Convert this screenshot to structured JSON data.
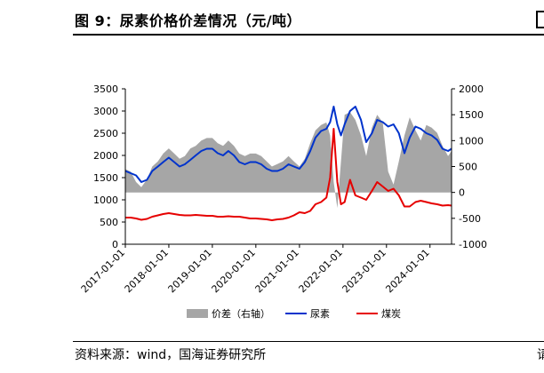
{
  "header": {
    "title": "图 9：尿素价格价差情况（元/吨）"
  },
  "footer": {
    "source": "资料来源：wind，国海证券研究所",
    "cut_char": "请"
  },
  "chart_data": {
    "type": "line",
    "title": "",
    "x_axis": {
      "type": "date",
      "ticks": [
        "2017-01-01",
        "2018-01-01",
        "2019-01-01",
        "2020-01-01",
        "2021-01-01",
        "2022-01-01",
        "2023-01-01",
        "2024-01-01"
      ],
      "range": [
        "2017-01-01",
        "2024-06-30"
      ]
    },
    "y_left": {
      "range": [
        0,
        3500
      ],
      "ticks": [
        0,
        500,
        1000,
        1500,
        2000,
        2500,
        3000,
        3500
      ]
    },
    "y_right": {
      "range": [
        -1000,
        2000
      ],
      "ticks": [
        -1000,
        -500,
        0,
        500,
        1000,
        1500,
        2000
      ]
    },
    "legend": {
      "position": "bottom"
    },
    "series": [
      {
        "name": "价差（右轴）",
        "type": "area",
        "axis": "right",
        "color": "#a6a6a6",
        "points": [
          [
            "2017-01-01",
            450
          ],
          [
            "2017-02-15",
            400
          ],
          [
            "2017-04-01",
            200
          ],
          [
            "2017-05-15",
            100
          ],
          [
            "2017-07-01",
            250
          ],
          [
            "2017-08-15",
            500
          ],
          [
            "2017-10-01",
            600
          ],
          [
            "2017-11-15",
            750
          ],
          [
            "2018-01-01",
            850
          ],
          [
            "2018-02-15",
            750
          ],
          [
            "2018-04-01",
            650
          ],
          [
            "2018-05-15",
            700
          ],
          [
            "2018-07-01",
            850
          ],
          [
            "2018-08-15",
            900
          ],
          [
            "2018-10-01",
            1000
          ],
          [
            "2018-11-15",
            1050
          ],
          [
            "2019-01-01",
            1050
          ],
          [
            "2019-02-15",
            950
          ],
          [
            "2019-04-01",
            900
          ],
          [
            "2019-05-15",
            1000
          ],
          [
            "2019-07-01",
            900
          ],
          [
            "2019-08-15",
            750
          ],
          [
            "2019-10-01",
            700
          ],
          [
            "2019-11-15",
            750
          ],
          [
            "2020-01-01",
            750
          ],
          [
            "2020-02-15",
            700
          ],
          [
            "2020-04-01",
            600
          ],
          [
            "2020-05-15",
            500
          ],
          [
            "2020-07-01",
            550
          ],
          [
            "2020-08-15",
            600
          ],
          [
            "2020-10-01",
            700
          ],
          [
            "2020-11-15",
            600
          ],
          [
            "2021-01-01",
            500
          ],
          [
            "2021-02-15",
            650
          ],
          [
            "2021-04-01",
            950
          ],
          [
            "2021-05-15",
            1200
          ],
          [
            "2021-07-01",
            1300
          ],
          [
            "2021-08-15",
            1350
          ],
          [
            "2021-09-15",
            1100
          ],
          [
            "2021-10-15",
            200
          ],
          [
            "2021-11-15",
            -300
          ],
          [
            "2021-12-15",
            600
          ],
          [
            "2022-01-15",
            1500
          ],
          [
            "2022-03-01",
            1550
          ],
          [
            "2022-04-15",
            1400
          ],
          [
            "2022-06-01",
            1100
          ],
          [
            "2022-07-15",
            700
          ],
          [
            "2022-09-01",
            1250
          ],
          [
            "2022-10-15",
            1500
          ],
          [
            "2022-12-01",
            1350
          ],
          [
            "2023-01-15",
            400
          ],
          [
            "2023-03-01",
            150
          ],
          [
            "2023-04-15",
            600
          ],
          [
            "2023-06-01",
            1100
          ],
          [
            "2023-07-15",
            1450
          ],
          [
            "2023-09-01",
            1200
          ],
          [
            "2023-10-15",
            1000
          ],
          [
            "2023-12-01",
            1300
          ],
          [
            "2024-01-15",
            1250
          ],
          [
            "2024-03-01",
            1150
          ],
          [
            "2024-04-15",
            900
          ],
          [
            "2024-06-01",
            700
          ],
          [
            "2024-06-30",
            800
          ]
        ]
      },
      {
        "name": "尿素",
        "type": "line",
        "axis": "left",
        "color": "#0033cc",
        "points": [
          [
            "2017-01-01",
            1650
          ],
          [
            "2017-02-15",
            1600
          ],
          [
            "2017-04-01",
            1550
          ],
          [
            "2017-05-15",
            1400
          ],
          [
            "2017-07-01",
            1450
          ],
          [
            "2017-08-15",
            1650
          ],
          [
            "2017-10-01",
            1750
          ],
          [
            "2017-11-15",
            1850
          ],
          [
            "2018-01-01",
            1950
          ],
          [
            "2018-02-15",
            1850
          ],
          [
            "2018-04-01",
            1750
          ],
          [
            "2018-05-15",
            1800
          ],
          [
            "2018-07-01",
            1900
          ],
          [
            "2018-08-15",
            2000
          ],
          [
            "2018-10-01",
            2100
          ],
          [
            "2018-11-15",
            2150
          ],
          [
            "2019-01-01",
            2150
          ],
          [
            "2019-02-15",
            2050
          ],
          [
            "2019-04-01",
            2000
          ],
          [
            "2019-05-15",
            2100
          ],
          [
            "2019-07-01",
            2000
          ],
          [
            "2019-08-15",
            1850
          ],
          [
            "2019-10-01",
            1800
          ],
          [
            "2019-11-15",
            1850
          ],
          [
            "2020-01-01",
            1850
          ],
          [
            "2020-02-15",
            1800
          ],
          [
            "2020-04-01",
            1700
          ],
          [
            "2020-05-15",
            1650
          ],
          [
            "2020-07-01",
            1650
          ],
          [
            "2020-08-15",
            1700
          ],
          [
            "2020-10-01",
            1800
          ],
          [
            "2020-11-15",
            1750
          ],
          [
            "2021-01-01",
            1700
          ],
          [
            "2021-02-15",
            1850
          ],
          [
            "2021-04-01",
            2100
          ],
          [
            "2021-05-15",
            2400
          ],
          [
            "2021-07-01",
            2550
          ],
          [
            "2021-08-15",
            2600
          ],
          [
            "2021-09-15",
            2750
          ],
          [
            "2021-10-15",
            3100
          ],
          [
            "2021-11-15",
            2700
          ],
          [
            "2021-12-15",
            2450
          ],
          [
            "2022-01-15",
            2700
          ],
          [
            "2022-03-01",
            3000
          ],
          [
            "2022-04-15",
            3100
          ],
          [
            "2022-06-01",
            2800
          ],
          [
            "2022-07-15",
            2300
          ],
          [
            "2022-09-01",
            2500
          ],
          [
            "2022-10-15",
            2800
          ],
          [
            "2022-12-01",
            2750
          ],
          [
            "2023-01-15",
            2650
          ],
          [
            "2023-03-01",
            2700
          ],
          [
            "2023-04-15",
            2500
          ],
          [
            "2023-06-01",
            2050
          ],
          [
            "2023-07-15",
            2400
          ],
          [
            "2023-09-01",
            2650
          ],
          [
            "2023-10-15",
            2600
          ],
          [
            "2023-12-01",
            2500
          ],
          [
            "2024-01-15",
            2450
          ],
          [
            "2024-03-01",
            2350
          ],
          [
            "2024-04-15",
            2150
          ],
          [
            "2024-06-01",
            2100
          ],
          [
            "2024-06-30",
            2150
          ]
        ]
      },
      {
        "name": "煤炭",
        "type": "line",
        "axis": "left",
        "color": "#e60000",
        "points": [
          [
            "2017-01-01",
            600
          ],
          [
            "2017-02-15",
            600
          ],
          [
            "2017-04-01",
            580
          ],
          [
            "2017-05-15",
            550
          ],
          [
            "2017-07-01",
            570
          ],
          [
            "2017-08-15",
            620
          ],
          [
            "2017-10-01",
            650
          ],
          [
            "2017-11-15",
            680
          ],
          [
            "2018-01-01",
            700
          ],
          [
            "2018-02-15",
            680
          ],
          [
            "2018-04-01",
            660
          ],
          [
            "2018-05-15",
            650
          ],
          [
            "2018-07-01",
            650
          ],
          [
            "2018-08-15",
            660
          ],
          [
            "2018-10-01",
            650
          ],
          [
            "2018-11-15",
            640
          ],
          [
            "2019-01-01",
            640
          ],
          [
            "2019-02-15",
            620
          ],
          [
            "2019-04-01",
            620
          ],
          [
            "2019-05-15",
            630
          ],
          [
            "2019-07-01",
            620
          ],
          [
            "2019-08-15",
            620
          ],
          [
            "2019-10-01",
            600
          ],
          [
            "2019-11-15",
            580
          ],
          [
            "2020-01-01",
            580
          ],
          [
            "2020-02-15",
            570
          ],
          [
            "2020-04-01",
            560
          ],
          [
            "2020-05-15",
            540
          ],
          [
            "2020-07-01",
            560
          ],
          [
            "2020-08-15",
            570
          ],
          [
            "2020-10-01",
            600
          ],
          [
            "2020-11-15",
            650
          ],
          [
            "2021-01-01",
            720
          ],
          [
            "2021-02-15",
            700
          ],
          [
            "2021-04-01",
            750
          ],
          [
            "2021-05-15",
            900
          ],
          [
            "2021-07-01",
            950
          ],
          [
            "2021-08-15",
            1050
          ],
          [
            "2021-09-15",
            1500
          ],
          [
            "2021-10-15",
            2600
          ],
          [
            "2021-11-15",
            1400
          ],
          [
            "2021-12-15",
            900
          ],
          [
            "2022-01-15",
            950
          ],
          [
            "2022-03-01",
            1450
          ],
          [
            "2022-04-15",
            1100
          ],
          [
            "2022-06-01",
            1050
          ],
          [
            "2022-07-15",
            1000
          ],
          [
            "2022-09-01",
            1200
          ],
          [
            "2022-10-15",
            1400
          ],
          [
            "2022-12-01",
            1300
          ],
          [
            "2023-01-15",
            1200
          ],
          [
            "2023-03-01",
            1250
          ],
          [
            "2023-04-15",
            1100
          ],
          [
            "2023-06-01",
            850
          ],
          [
            "2023-07-15",
            850
          ],
          [
            "2023-09-01",
            950
          ],
          [
            "2023-10-15",
            980
          ],
          [
            "2023-12-01",
            950
          ],
          [
            "2024-01-15",
            920
          ],
          [
            "2024-03-01",
            900
          ],
          [
            "2024-04-15",
            870
          ],
          [
            "2024-06-01",
            880
          ],
          [
            "2024-06-30",
            870
          ]
        ]
      }
    ]
  }
}
